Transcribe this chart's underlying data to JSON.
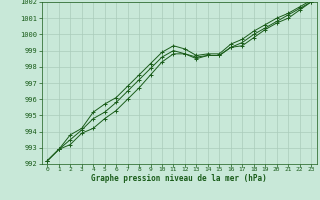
{
  "xlabel": "Graphe pression niveau de la mer (hPa)",
  "xlim": [
    -0.5,
    23.5
  ],
  "ylim": [
    992,
    1002
  ],
  "yticks": [
    992,
    993,
    994,
    995,
    996,
    997,
    998,
    999,
    1000,
    1001,
    1002
  ],
  "xticks": [
    0,
    1,
    2,
    3,
    4,
    5,
    6,
    7,
    8,
    9,
    10,
    11,
    12,
    13,
    14,
    15,
    16,
    17,
    18,
    19,
    20,
    21,
    22,
    23
  ],
  "bg_color": "#c8e8d8",
  "grid_color": "#aaccbb",
  "line_color": "#1a5c1a",
  "line1": [
    992.2,
    992.9,
    993.2,
    993.9,
    994.2,
    994.8,
    995.3,
    996.0,
    996.7,
    997.5,
    998.3,
    998.8,
    998.8,
    998.6,
    998.7,
    998.7,
    999.2,
    999.3,
    999.8,
    1000.3,
    1000.7,
    1001.0,
    1001.5,
    1002.0
  ],
  "line2": [
    992.2,
    992.9,
    993.5,
    994.1,
    994.8,
    995.2,
    995.8,
    996.5,
    997.2,
    997.9,
    998.6,
    999.0,
    998.8,
    998.5,
    998.7,
    998.7,
    999.2,
    999.5,
    1000.0,
    1000.4,
    1000.8,
    1001.2,
    1001.6,
    1002.0
  ],
  "line3": [
    992.2,
    992.9,
    993.8,
    994.2,
    995.2,
    995.7,
    996.1,
    996.8,
    997.5,
    998.2,
    998.9,
    999.3,
    999.1,
    998.7,
    998.8,
    998.8,
    999.4,
    999.7,
    1000.2,
    1000.6,
    1001.0,
    1001.3,
    1001.7,
    1002.1
  ]
}
